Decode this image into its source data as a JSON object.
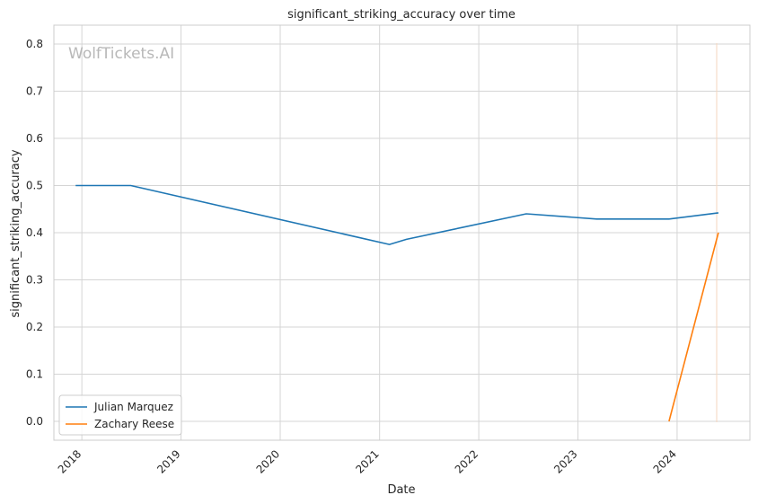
{
  "chart_data": {
    "type": "line",
    "title": "significant_striking_accuracy over time",
    "xlabel": "Date",
    "ylabel": "significant_striking_accuracy",
    "watermark": "WolfTickets.AI",
    "x_ticks": [
      "2018",
      "2019",
      "2020",
      "2021",
      "2022",
      "2023",
      "2024"
    ],
    "y_ticks": [
      "0.0",
      "0.1",
      "0.2",
      "0.3",
      "0.4",
      "0.5",
      "0.6",
      "0.7",
      "0.8"
    ],
    "xlim": [
      "2017-09-20",
      "2024-09-25"
    ],
    "ylim": [
      -0.04,
      0.84
    ],
    "grid": true,
    "legend_position": "lower-left",
    "series": [
      {
        "name": "Julian Marquez",
        "color": "#1f77b4",
        "points": [
          {
            "x": "2017-12-09",
            "y": 0.5
          },
          {
            "x": "2018-06-30",
            "y": 0.5
          },
          {
            "x": "2021-02-06",
            "y": 0.375
          },
          {
            "x": "2021-04-10",
            "y": 0.386
          },
          {
            "x": "2022-06-25",
            "y": 0.44
          },
          {
            "x": "2023-03-11",
            "y": 0.429
          },
          {
            "x": "2023-12-02",
            "y": 0.429
          },
          {
            "x": "2024-06-01",
            "y": 0.442
          }
        ]
      },
      {
        "name": "Zachary Reese",
        "color": "#ff7f0e",
        "points": [
          {
            "x": "2023-12-02",
            "y": 0.0
          },
          {
            "x": "2024-06-01",
            "y": 0.4
          }
        ]
      }
    ]
  }
}
